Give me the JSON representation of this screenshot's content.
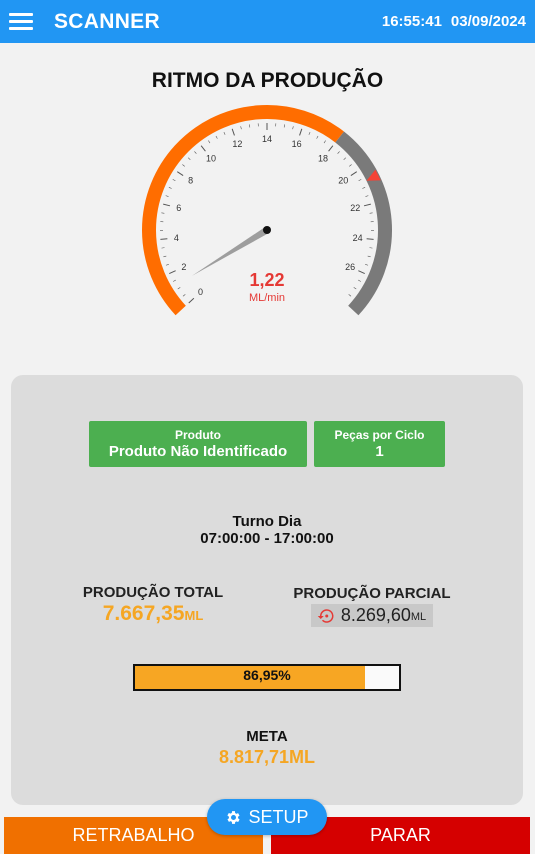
{
  "header": {
    "title": "SCANNER",
    "time": "16:55:41",
    "date": "03/09/2024",
    "menu_icon": "hamburger-menu-icon"
  },
  "gauge": {
    "title": "RITMO DA PRODUÇÃO",
    "value": "1,22",
    "unit": "ML/min",
    "reading": 1.22,
    "min": 0,
    "max": 28,
    "ticks": [
      "0",
      "2",
      "4",
      "6",
      "8",
      "10",
      "12",
      "14",
      "16",
      "18",
      "20",
      "22",
      "24",
      "26"
    ],
    "orange_to": 18,
    "marker_at": 20.7,
    "colors": {
      "low_zone": "#ff6d00",
      "high_zone": "#7a7a7a",
      "marker": "#f44336",
      "needle": "#9e9e9e"
    }
  },
  "product": {
    "label": "Produto",
    "value": "Produto Não Identificado"
  },
  "pieces": {
    "label": "Peças por Ciclo",
    "value": "1"
  },
  "shift": {
    "name": "Turno Dia",
    "hours": "07:00:00 - 17:00:00"
  },
  "total": {
    "label": "PRODUÇÃO TOTAL",
    "value": "7.667,35",
    "unit": "ML"
  },
  "partial": {
    "label": "PRODUÇÃO PARCIAL",
    "value": "8.269,60",
    "unit": "ML",
    "icon": "reset-icon"
  },
  "progress": {
    "label": "86,95%",
    "fraction": 0.8695
  },
  "goal": {
    "label": "META",
    "value": "8.817,71ML"
  },
  "buttons": {
    "rework": "RETRABALHO",
    "stop": "PARAR",
    "setup": "SETUP",
    "setup_icon": "gear-icon"
  },
  "colors": {
    "header": "#2196f3",
    "accent_orange": "#f5a623",
    "chip_green": "#4caf50",
    "rework": "#f07000",
    "stop": "#d50000"
  }
}
